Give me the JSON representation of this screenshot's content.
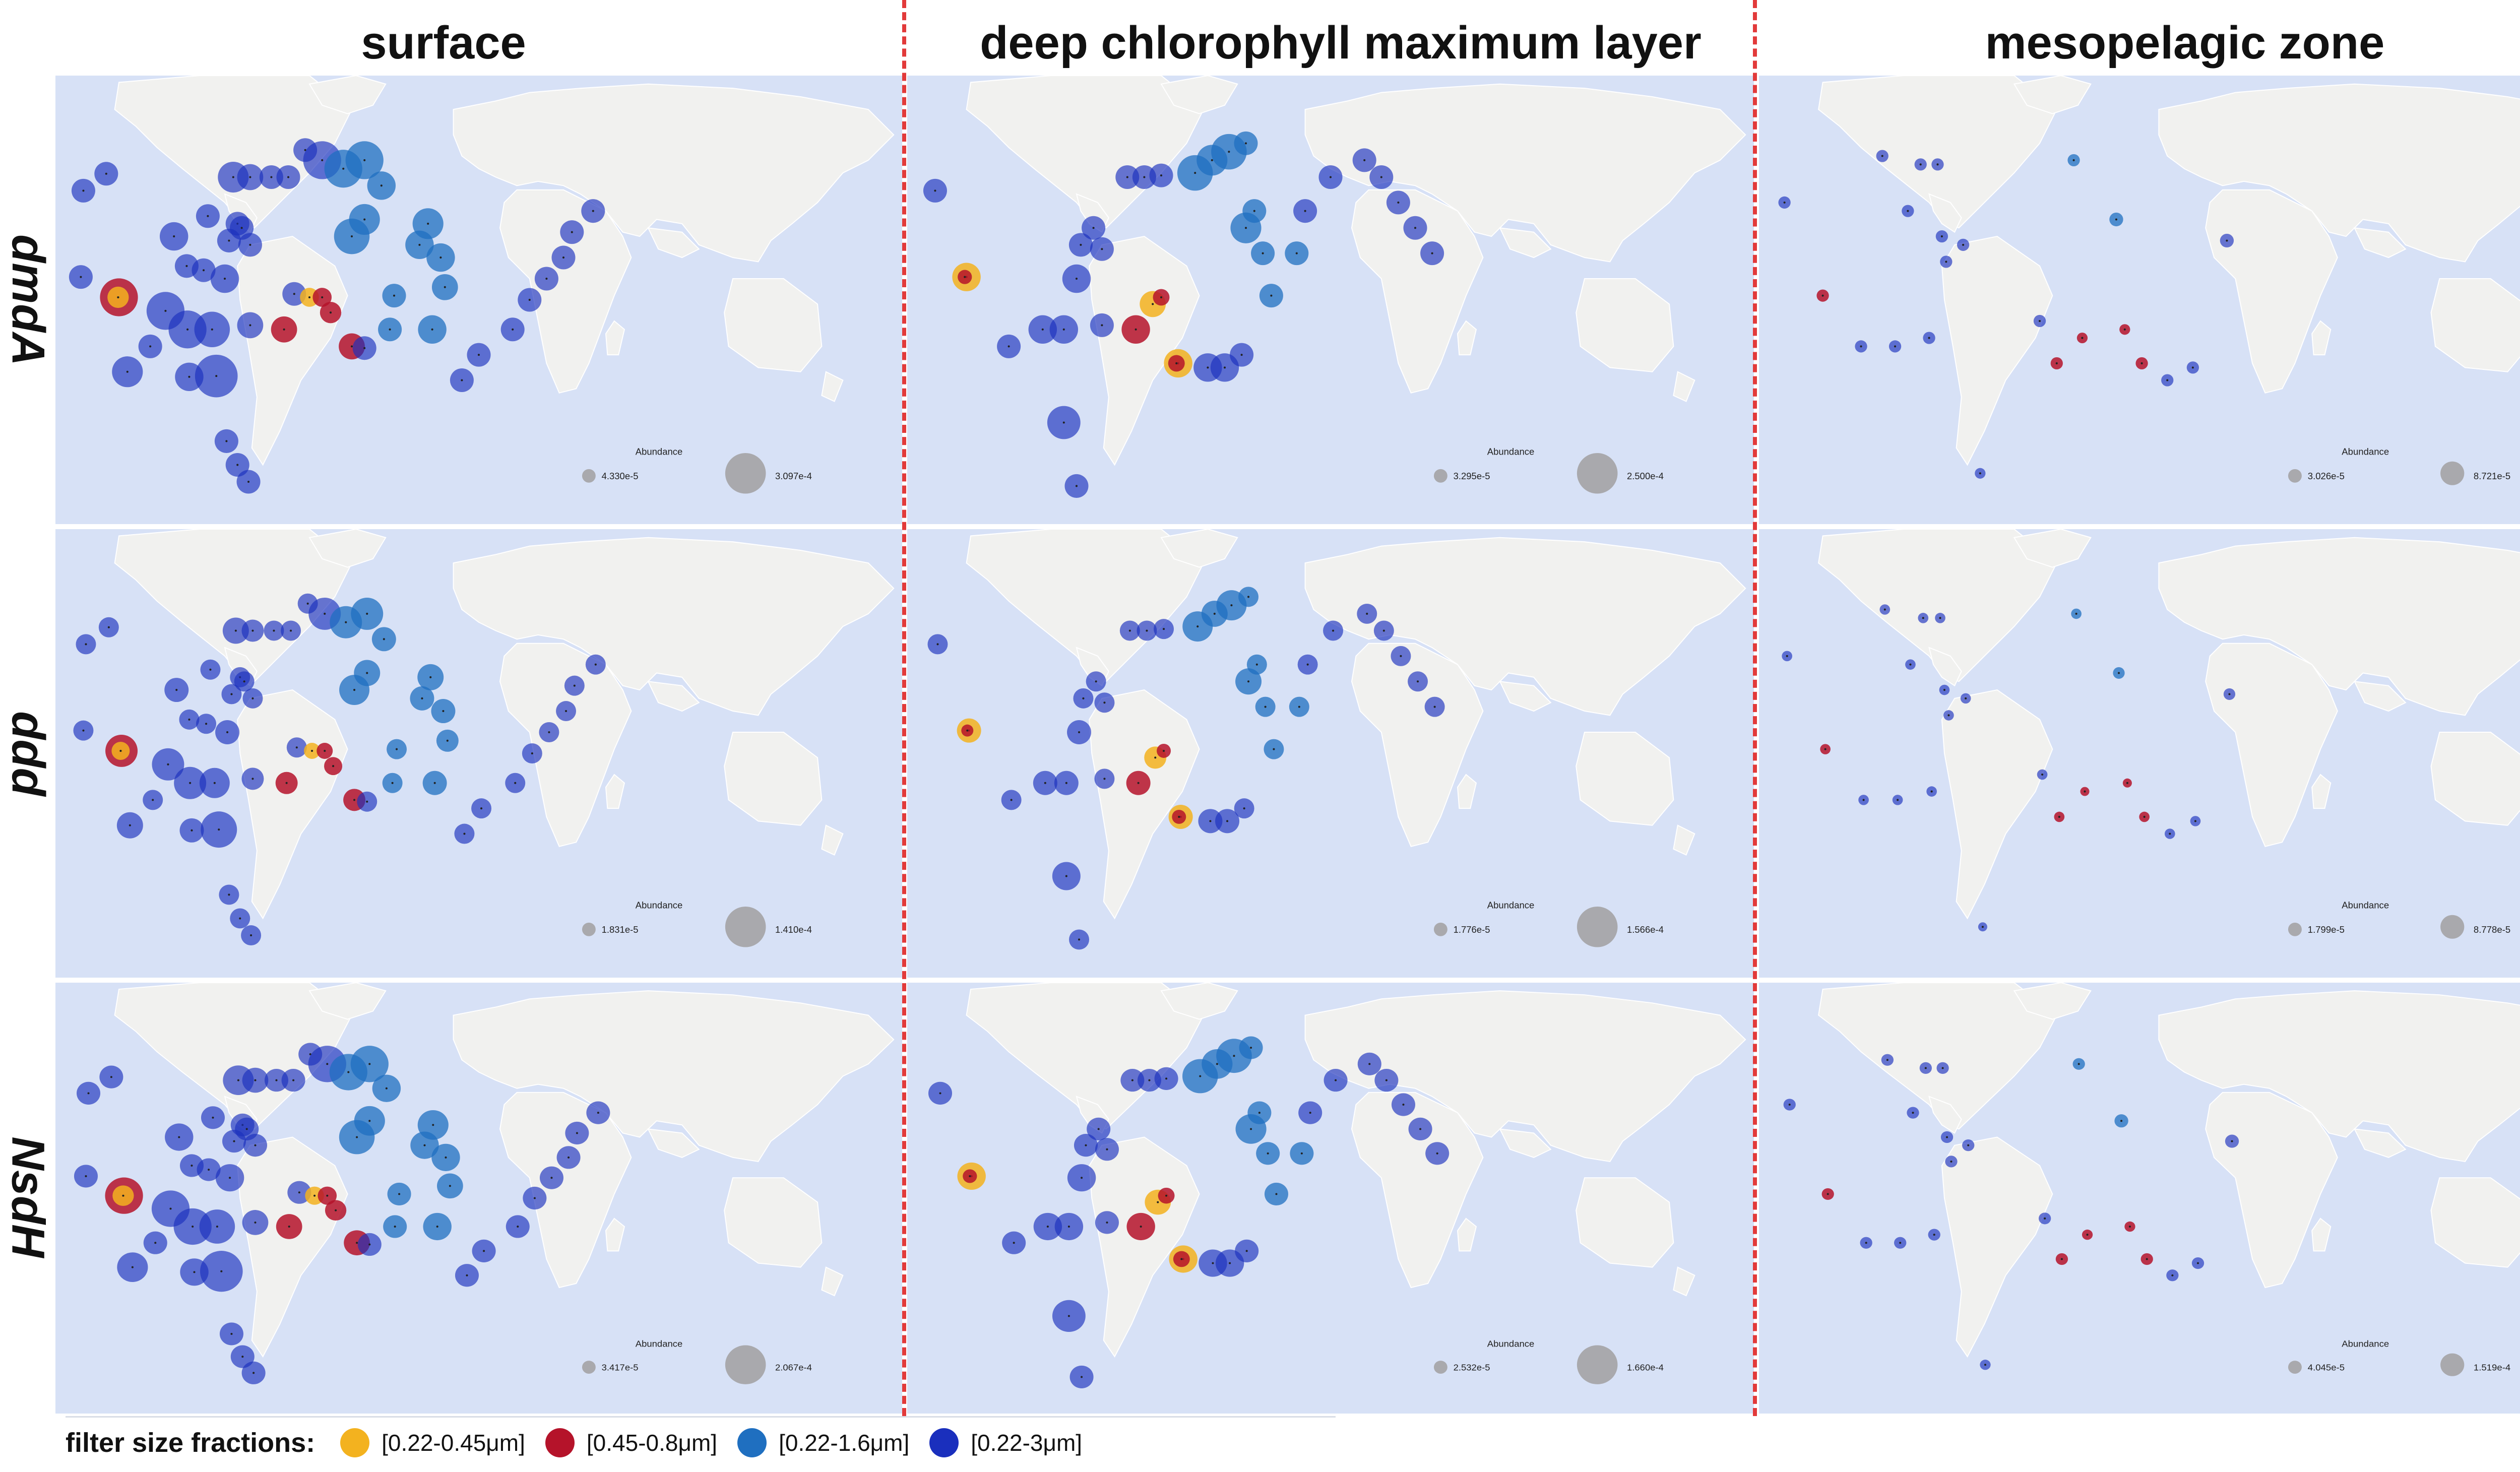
{
  "columns": [
    "surface",
    "deep chlorophyll maximum layer",
    "mesopelagic zone"
  ],
  "rows": [
    "dmdA",
    "ddd",
    "NsdH"
  ],
  "legend": {
    "title": "filter size fractions:",
    "items": [
      {
        "label": "[0.22-0.45μm]",
        "color": "#f3b21f"
      },
      {
        "label": "[0.45-0.8μm]",
        "color": "#b5132a"
      },
      {
        "label": "[0.22-1.6μm]",
        "color": "#1f6fc0"
      },
      {
        "label": "[0.22-3μm]",
        "color": "#1a2fbd"
      }
    ]
  },
  "colors": {
    "ocean": "#d7e1f6",
    "land": "#f1f1ef",
    "divider": "#e23a3a"
  },
  "abundance_title": "Abundance",
  "abundance_keys": [
    [
      {
        "min": "4.330e-5",
        "max": "3.097e-4"
      },
      {
        "min": "3.295e-5",
        "max": "2.500e-4"
      },
      {
        "min": "3.026e-5",
        "max": "8.721e-5"
      }
    ],
    [
      {
        "min": "1.831e-5",
        "max": "1.410e-4"
      },
      {
        "min": "1.776e-5",
        "max": "1.566e-4"
      },
      {
        "min": "1.799e-5",
        "max": "8.778e-5"
      }
    ],
    [
      {
        "min": "3.417e-5",
        "max": "2.067e-4"
      },
      {
        "min": "2.532e-5",
        "max": "1.660e-4"
      },
      {
        "min": "4.045e-5",
        "max": "1.519e-4"
      }
    ]
  ]
}
